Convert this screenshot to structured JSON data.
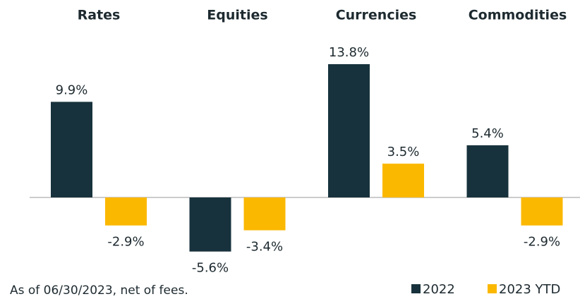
{
  "chart_data": {
    "type": "bar",
    "categories": [
      "Rates",
      "Equities",
      "Currencies",
      "Commodities"
    ],
    "series": [
      {
        "name": "2022",
        "color": "#17323c",
        "values": [
          9.9,
          -5.6,
          13.8,
          5.4
        ],
        "value_labels": [
          "9.9%",
          "-5.6%",
          "13.8%",
          "5.4%"
        ]
      },
      {
        "name": "2023 YTD",
        "color": "#fbb800",
        "values": [
          -2.9,
          -3.4,
          3.5,
          -2.9
        ],
        "value_labels": [
          "-2.9%",
          "-3.4%",
          "3.5%",
          "-2.9%"
        ]
      }
    ],
    "footnote": "As of 06/30/2023, net of fees.",
    "legend": "bottom-right"
  }
}
